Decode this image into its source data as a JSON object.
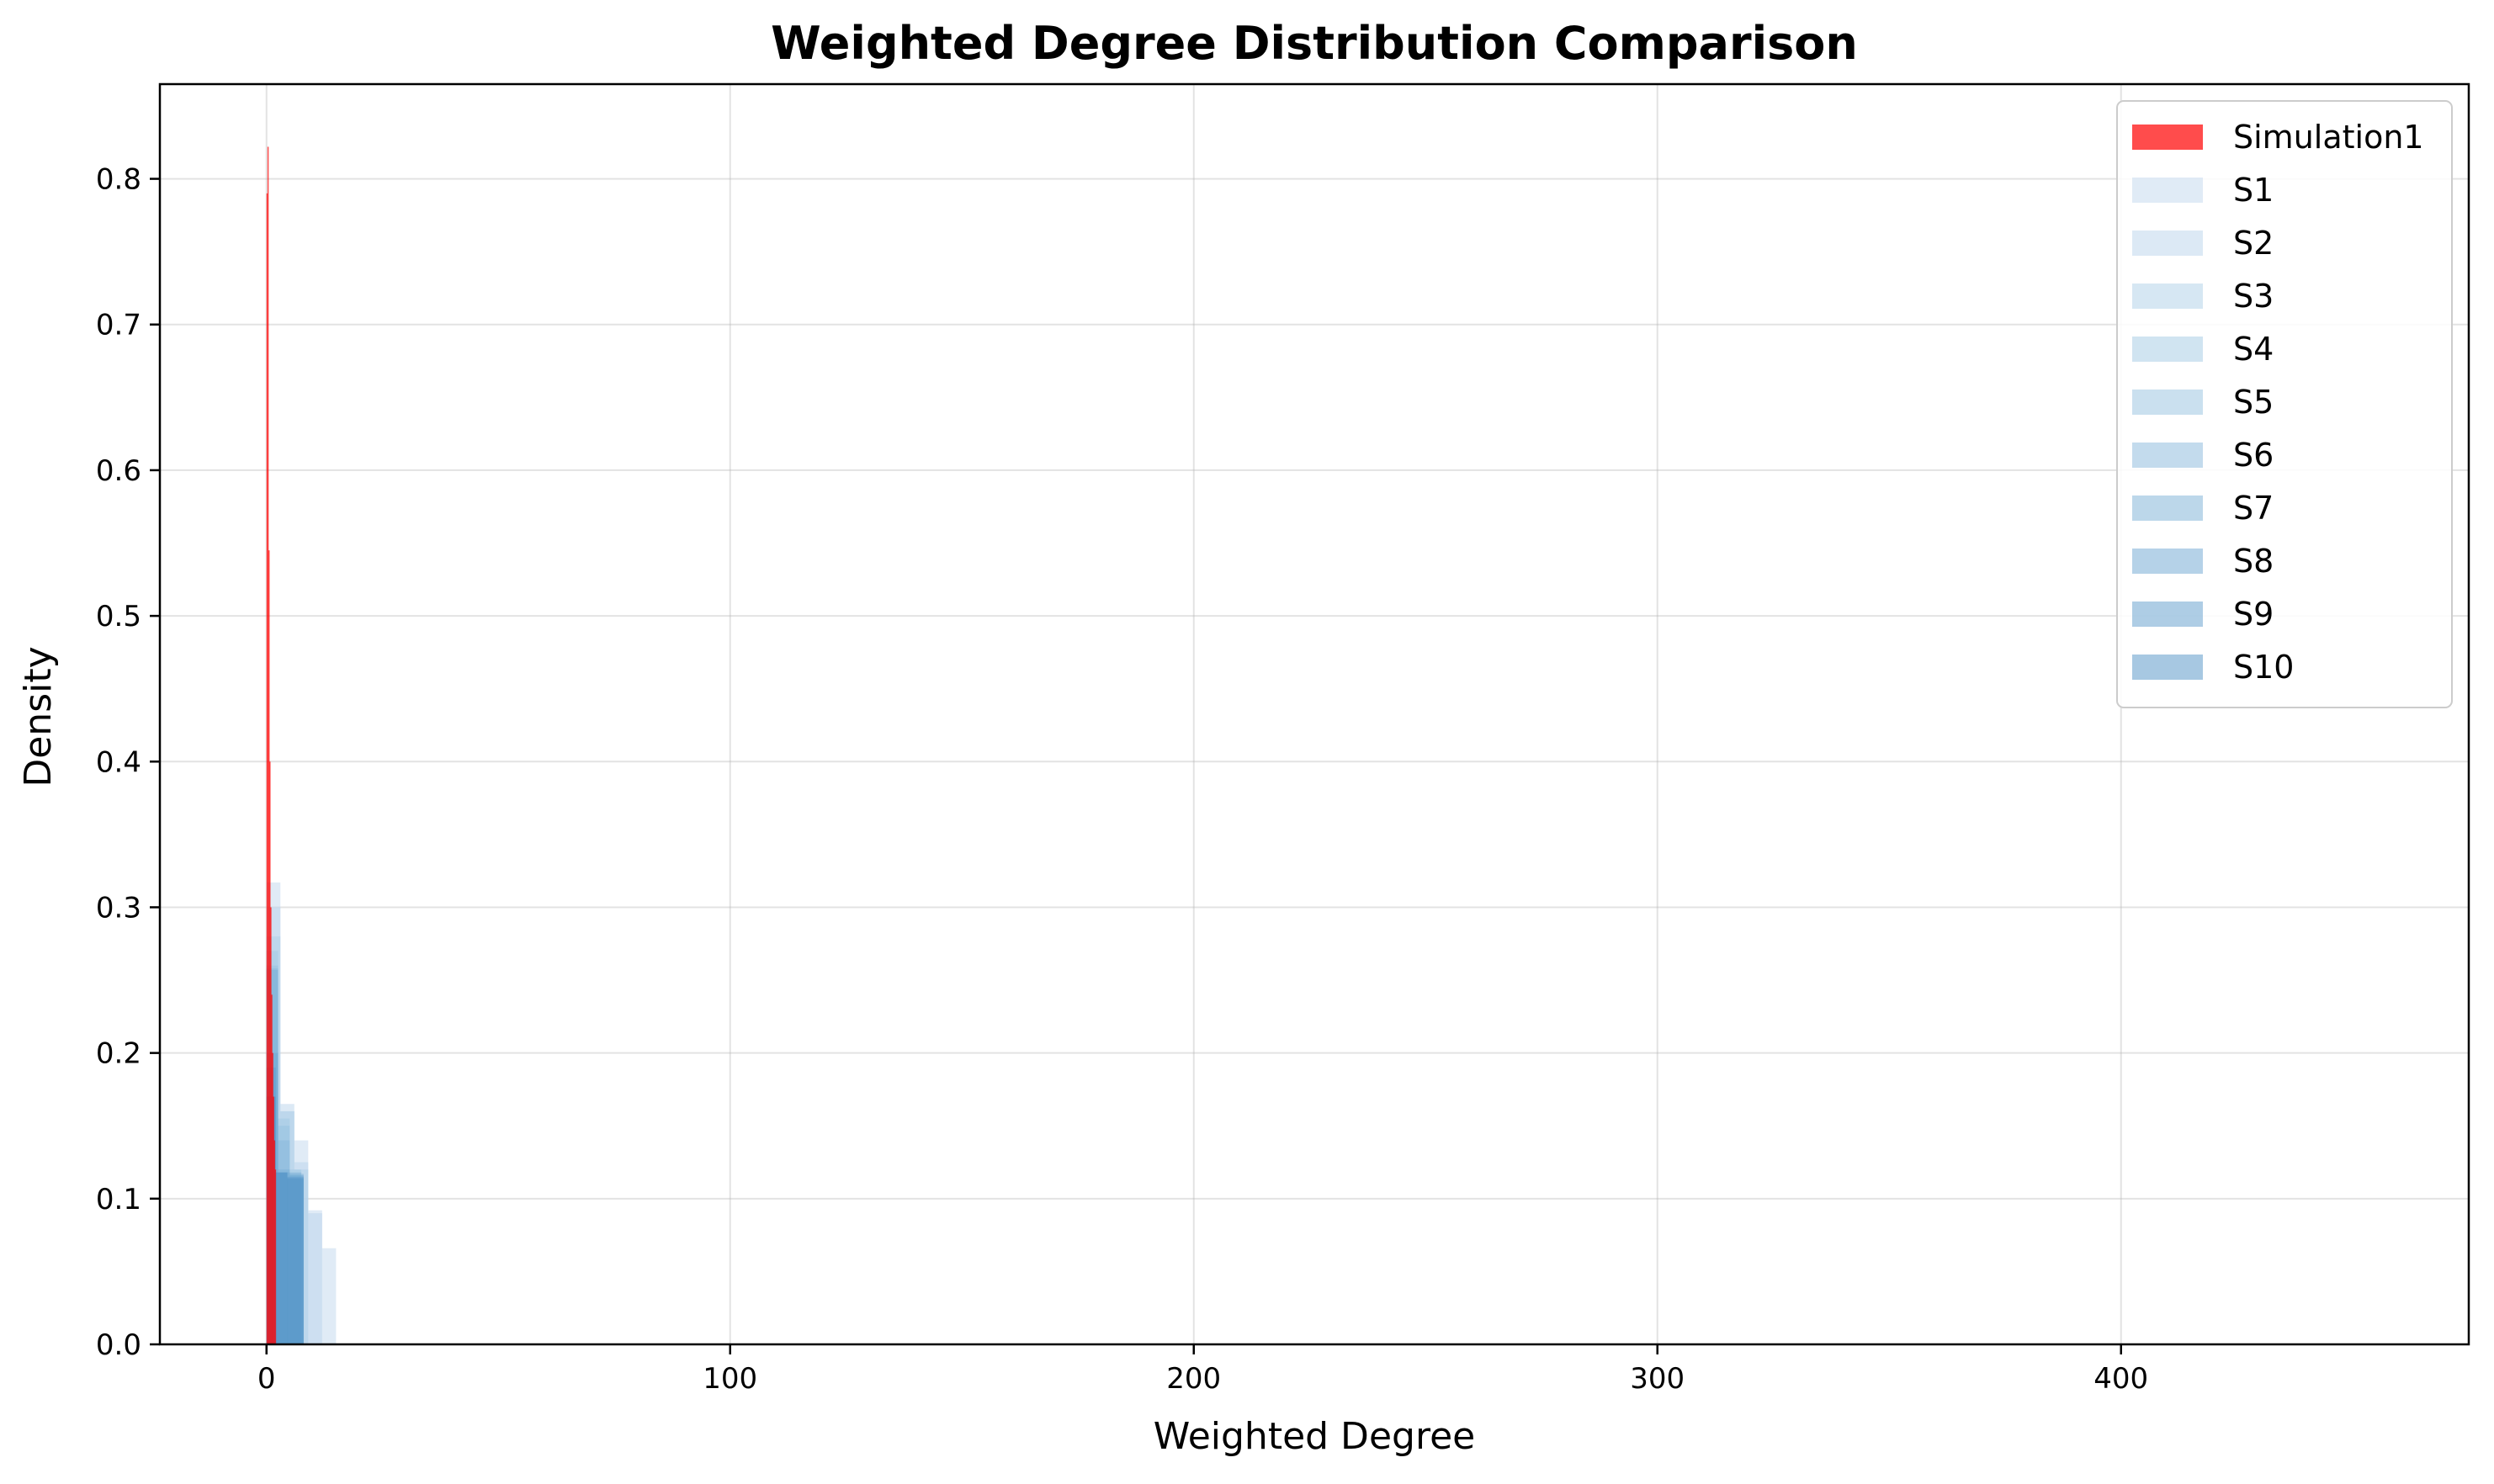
{
  "chart_data": {
    "type": "bar",
    "title": "Weighted Degree Distribution Comparison",
    "xlabel": "Weighted Degree",
    "ylabel": "Density",
    "xlim": [
      -23,
      475
    ],
    "ylim": [
      0,
      0.865
    ],
    "xticks": [
      0,
      100,
      200,
      300,
      400
    ],
    "yticks": [
      0.0,
      0.1,
      0.2,
      0.3,
      0.4,
      0.5,
      0.6,
      0.7,
      0.8
    ],
    "grid": true,
    "legend_position": "top-right",
    "series": [
      {
        "name": "Simulation1",
        "color": "#ff0000",
        "opacity": 0.7,
        "bins": [
          [
            0.0,
            0.2,
            0.79
          ],
          [
            0.2,
            0.4,
            0.822
          ],
          [
            0.4,
            0.6,
            0.545
          ],
          [
            0.6,
            0.8,
            0.4
          ],
          [
            0.8,
            1.0,
            0.3
          ],
          [
            1.0,
            1.2,
            0.24
          ],
          [
            1.2,
            1.4,
            0.2
          ],
          [
            1.4,
            1.6,
            0.17
          ],
          [
            1.6,
            1.8,
            0.14
          ],
          [
            1.8,
            2.0,
            0.12
          ]
        ]
      },
      {
        "name": "S1",
        "color": "#c6dbef",
        "opacity": 0.55,
        "bins": [
          [
            0,
            3,
            0.317
          ],
          [
            3,
            6,
            0.16
          ],
          [
            6,
            9,
            0.14
          ],
          [
            9,
            12,
            0.092
          ],
          [
            12,
            15,
            0.066
          ]
        ]
      },
      {
        "name": "S2",
        "color": "#b9d4eb",
        "opacity": 0.5,
        "bins": [
          [
            0,
            3,
            0.3
          ],
          [
            3,
            6,
            0.165
          ],
          [
            6,
            9,
            0.125
          ],
          [
            9,
            12,
            0.09
          ]
        ]
      },
      {
        "name": "S3",
        "color": "#add0e8",
        "opacity": 0.5,
        "bins": [
          [
            0,
            3,
            0.28
          ],
          [
            3,
            6,
            0.16
          ],
          [
            6,
            9,
            0.12
          ]
        ]
      },
      {
        "name": "S4",
        "color": "#a1c9e4",
        "opacity": 0.5,
        "bins": [
          [
            0,
            2.5,
            0.27
          ],
          [
            2.5,
            5,
            0.155
          ],
          [
            5,
            7.5,
            0.12
          ]
        ]
      },
      {
        "name": "S5",
        "color": "#95c1e0",
        "opacity": 0.5,
        "bins": [
          [
            0,
            2.5,
            0.26
          ],
          [
            2.5,
            5,
            0.15
          ],
          [
            5,
            7.5,
            0.118
          ]
        ]
      },
      {
        "name": "S6",
        "color": "#88b8db",
        "opacity": 0.5,
        "bins": [
          [
            0,
            2.5,
            0.258
          ],
          [
            2.5,
            5,
            0.14
          ],
          [
            5,
            7.5,
            0.118
          ]
        ]
      },
      {
        "name": "S7",
        "color": "#7aafd6",
        "opacity": 0.5,
        "bins": [
          [
            0,
            2.5,
            0.257
          ],
          [
            2.5,
            5,
            0.12
          ],
          [
            5,
            8,
            0.117
          ]
        ]
      },
      {
        "name": "S8",
        "color": "#6ca5d1",
        "opacity": 0.5,
        "bins": [
          [
            0,
            2.5,
            0.2
          ],
          [
            2.5,
            5,
            0.118
          ],
          [
            5,
            8,
            0.116
          ]
        ]
      },
      {
        "name": "S9",
        "color": "#5d9bcc",
        "opacity": 0.5,
        "bins": [
          [
            0,
            2,
            0.19
          ],
          [
            2,
            4.5,
            0.118
          ],
          [
            4.5,
            8,
            0.115
          ]
        ]
      },
      {
        "name": "S10",
        "color": "#4f91c6",
        "opacity": 0.5,
        "bins": [
          [
            0,
            2,
            0.17
          ],
          [
            2,
            4.5,
            0.118
          ],
          [
            4.5,
            8,
            0.114
          ]
        ]
      }
    ]
  }
}
